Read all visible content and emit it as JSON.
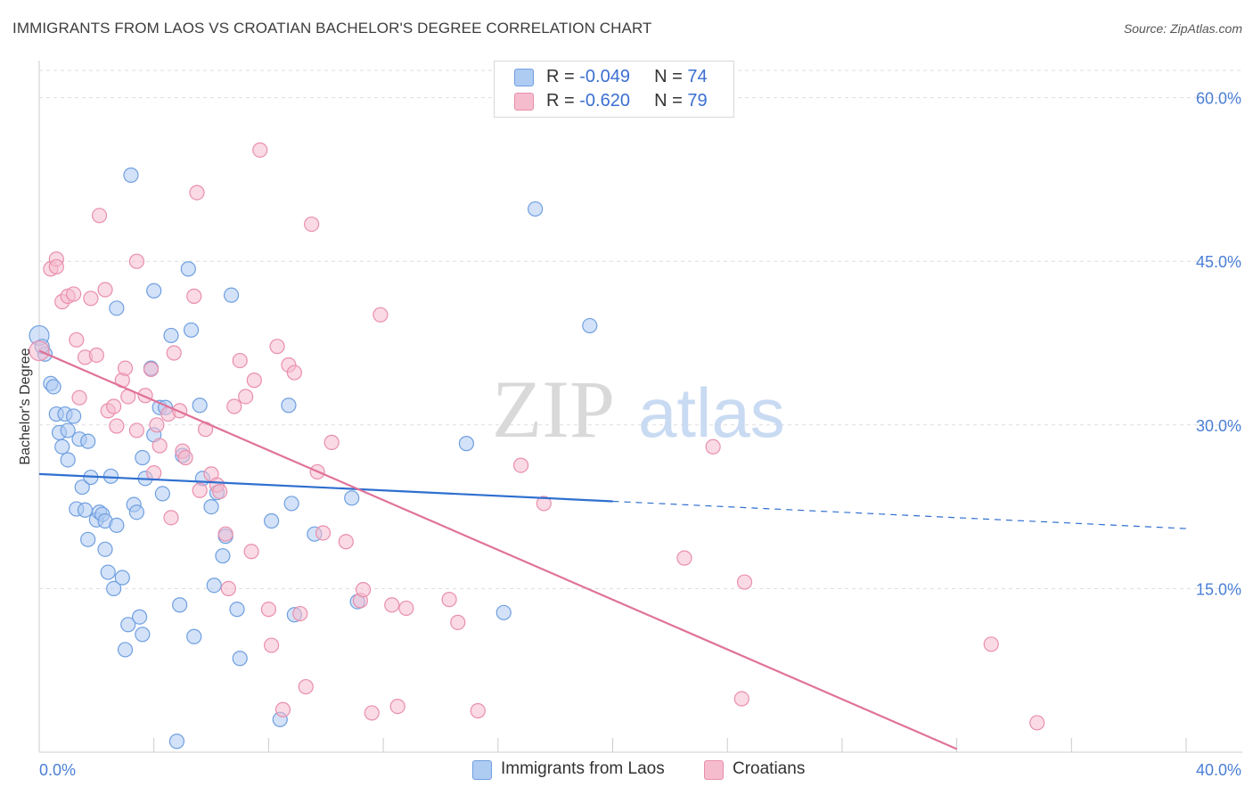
{
  "title": "IMMIGRANTS FROM LAOS VS CROATIAN BACHELOR'S DEGREE CORRELATION CHART",
  "source": "Source: ZipAtlas.com",
  "watermark": {
    "zip": "ZIP",
    "atlas": "atlas"
  },
  "colors": {
    "blue_fill": "#aecbf2",
    "blue_stroke": "#6f9fe0",
    "blue_line": "#2f6fd0",
    "pink_fill": "#f5bccd",
    "pink_stroke": "#e98fac",
    "pink_line": "#e0729a",
    "axis_label": "#4a7fd6",
    "grid": "#dddddd"
  },
  "legend": {
    "blue": {
      "r_label": "R = ",
      "r_value": "-0.049",
      "n_label": "N = ",
      "n_value": "74"
    },
    "pink": {
      "r_label": "R = ",
      "r_value": "-0.620",
      "n_label": "N = ",
      "n_value": "79"
    }
  },
  "bottom_legend": {
    "blue": "Immigrants from Laos",
    "pink": "Croatians"
  },
  "chart_data": {
    "type": "scatter",
    "title": "IMMIGRANTS FROM LAOS VS CROATIAN BACHELOR'S DEGREE CORRELATION CHART",
    "xlabel": "",
    "ylabel": "Bachelor's Degree",
    "xlim": [
      0,
      40
    ],
    "ylim": [
      0,
      60
    ],
    "x_tick_labels": [
      "0.0%",
      "40.0%"
    ],
    "y_ticks": [
      15,
      30,
      45,
      60
    ],
    "y_tick_labels": [
      "15.0%",
      "30.0%",
      "45.0%",
      "60.0%"
    ],
    "grid": true,
    "series": [
      {
        "name": "Immigrants from Laos",
        "color": "#aecbf2",
        "points": [
          [
            0.0,
            38.2
          ],
          [
            0.2,
            36.5
          ],
          [
            0.4,
            33.8
          ],
          [
            0.5,
            33.5
          ],
          [
            0.6,
            31.0
          ],
          [
            0.7,
            29.3
          ],
          [
            0.8,
            28.0
          ],
          [
            0.9,
            31.0
          ],
          [
            1.0,
            29.5
          ],
          [
            1.0,
            26.8
          ],
          [
            1.2,
            30.8
          ],
          [
            1.3,
            22.3
          ],
          [
            1.4,
            28.7
          ],
          [
            1.5,
            24.3
          ],
          [
            1.6,
            22.2
          ],
          [
            1.7,
            28.5
          ],
          [
            1.7,
            19.5
          ],
          [
            1.8,
            25.2
          ],
          [
            2.0,
            21.3
          ],
          [
            2.1,
            22.0
          ],
          [
            2.2,
            21.8
          ],
          [
            2.3,
            21.2
          ],
          [
            2.3,
            18.6
          ],
          [
            2.4,
            16.5
          ],
          [
            2.5,
            25.3
          ],
          [
            2.6,
            15.0
          ],
          [
            2.7,
            40.7
          ],
          [
            2.7,
            20.8
          ],
          [
            2.9,
            16.0
          ],
          [
            3.0,
            9.4
          ],
          [
            3.1,
            11.7
          ],
          [
            3.2,
            52.9
          ],
          [
            3.3,
            22.7
          ],
          [
            3.4,
            22.0
          ],
          [
            3.5,
            12.4
          ],
          [
            3.6,
            10.8
          ],
          [
            3.6,
            27.0
          ],
          [
            3.7,
            25.1
          ],
          [
            3.9,
            35.2
          ],
          [
            4.0,
            42.3
          ],
          [
            4.0,
            29.1
          ],
          [
            4.2,
            31.6
          ],
          [
            4.3,
            23.7
          ],
          [
            4.4,
            31.6
          ],
          [
            4.6,
            38.2
          ],
          [
            4.8,
            1.0
          ],
          [
            4.9,
            13.5
          ],
          [
            5.0,
            27.2
          ],
          [
            5.2,
            44.3
          ],
          [
            5.3,
            38.7
          ],
          [
            5.4,
            10.6
          ],
          [
            5.6,
            31.8
          ],
          [
            5.7,
            25.1
          ],
          [
            6.0,
            22.5
          ],
          [
            6.1,
            15.3
          ],
          [
            6.2,
            23.8
          ],
          [
            6.4,
            18.0
          ],
          [
            6.5,
            19.8
          ],
          [
            6.7,
            41.9
          ],
          [
            6.9,
            13.1
          ],
          [
            7.0,
            8.6
          ],
          [
            8.1,
            21.2
          ],
          [
            8.4,
            3.0
          ],
          [
            8.7,
            31.8
          ],
          [
            8.8,
            22.8
          ],
          [
            8.9,
            12.6
          ],
          [
            9.6,
            20.0
          ],
          [
            10.9,
            23.3
          ],
          [
            11.1,
            13.8
          ],
          [
            14.9,
            28.3
          ],
          [
            16.2,
            12.8
          ],
          [
            17.3,
            49.8
          ],
          [
            19.2,
            39.1
          ],
          [
            0.1,
            37.2
          ]
        ]
      },
      {
        "name": "Croatians",
        "color": "#f5bccd",
        "points": [
          [
            0.0,
            36.8
          ],
          [
            0.4,
            44.3
          ],
          [
            0.6,
            45.2
          ],
          [
            0.6,
            44.5
          ],
          [
            0.8,
            41.3
          ],
          [
            1.0,
            41.8
          ],
          [
            1.2,
            42.0
          ],
          [
            1.3,
            37.8
          ],
          [
            1.4,
            32.5
          ],
          [
            1.6,
            36.2
          ],
          [
            1.8,
            41.6
          ],
          [
            2.0,
            36.4
          ],
          [
            2.1,
            49.2
          ],
          [
            2.3,
            42.4
          ],
          [
            2.4,
            31.3
          ],
          [
            2.6,
            31.7
          ],
          [
            2.7,
            29.9
          ],
          [
            2.9,
            34.1
          ],
          [
            3.0,
            35.2
          ],
          [
            3.1,
            32.6
          ],
          [
            3.4,
            29.5
          ],
          [
            3.4,
            45.0
          ],
          [
            3.7,
            32.7
          ],
          [
            3.9,
            35.1
          ],
          [
            4.0,
            25.6
          ],
          [
            4.1,
            30.0
          ],
          [
            4.2,
            28.1
          ],
          [
            4.5,
            31.0
          ],
          [
            4.6,
            21.5
          ],
          [
            4.7,
            36.6
          ],
          [
            4.9,
            31.3
          ],
          [
            5.0,
            27.6
          ],
          [
            5.1,
            27.0
          ],
          [
            5.4,
            41.8
          ],
          [
            5.5,
            51.3
          ],
          [
            5.6,
            24.0
          ],
          [
            5.8,
            29.6
          ],
          [
            6.0,
            25.5
          ],
          [
            6.2,
            24.5
          ],
          [
            6.3,
            23.9
          ],
          [
            6.5,
            20.0
          ],
          [
            6.6,
            15.0
          ],
          [
            6.8,
            31.7
          ],
          [
            7.0,
            35.9
          ],
          [
            7.2,
            32.6
          ],
          [
            7.4,
            18.4
          ],
          [
            7.5,
            34.1
          ],
          [
            7.7,
            55.2
          ],
          [
            8.0,
            13.1
          ],
          [
            8.1,
            9.8
          ],
          [
            8.3,
            37.2
          ],
          [
            8.5,
            3.9
          ],
          [
            8.7,
            35.5
          ],
          [
            8.9,
            34.8
          ],
          [
            9.1,
            12.7
          ],
          [
            9.3,
            6.0
          ],
          [
            9.5,
            48.4
          ],
          [
            9.7,
            25.7
          ],
          [
            9.9,
            20.1
          ],
          [
            10.2,
            28.4
          ],
          [
            10.7,
            19.3
          ],
          [
            11.2,
            13.9
          ],
          [
            11.3,
            14.9
          ],
          [
            11.6,
            3.6
          ],
          [
            11.9,
            40.1
          ],
          [
            12.3,
            13.5
          ],
          [
            12.5,
            4.2
          ],
          [
            12.8,
            13.2
          ],
          [
            14.3,
            14.0
          ],
          [
            14.6,
            11.9
          ],
          [
            15.3,
            3.8
          ],
          [
            16.8,
            26.3
          ],
          [
            17.6,
            22.8
          ],
          [
            22.5,
            17.8
          ],
          [
            23.5,
            28.0
          ],
          [
            24.5,
            4.9
          ],
          [
            24.6,
            15.6
          ],
          [
            33.2,
            9.9
          ],
          [
            34.8,
            2.7
          ]
        ]
      }
    ],
    "trend_lines": [
      {
        "series": "Immigrants from Laos",
        "x": [
          0,
          20
        ],
        "y": [
          25.5,
          23.0
        ],
        "dashed_extension_to": [
          40,
          20.5
        ]
      },
      {
        "series": "Croatians",
        "x": [
          0,
          32
        ],
        "y": [
          36.8,
          0.3
        ]
      }
    ]
  }
}
